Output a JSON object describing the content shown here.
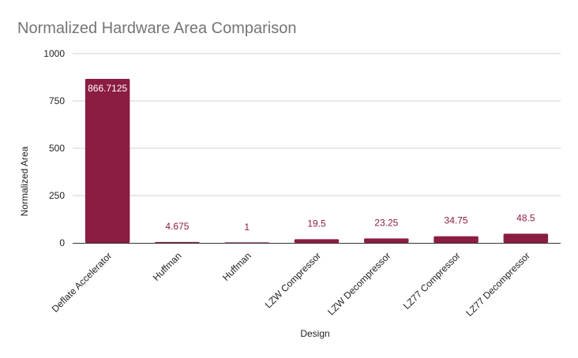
{
  "chart_data": {
    "type": "bar",
    "title": "Normalized Hardware Area Comparison",
    "xlabel": "Design",
    "ylabel": "Normalized Area",
    "categories": [
      "Deflate Accelerator",
      "Huffman",
      "Huffman",
      "LZW Compressor",
      "LZW Decompressor",
      "LZ77 Compressor",
      "LZ77 Decompressor"
    ],
    "values": [
      866.7125,
      4.675,
      1,
      19.5,
      23.25,
      34.75,
      48.5
    ],
    "data_labels": [
      "866.7125",
      "4.675",
      "1",
      "19.5",
      "23.25",
      "34.75",
      "48.5"
    ],
    "ylim": [
      0,
      1000
    ],
    "yticks": [
      0,
      250,
      500,
      750,
      1000
    ],
    "grid": true,
    "legend": "none",
    "colors": {
      "bar": "#8b1c42",
      "label_outside": "#8b1c42",
      "label_inside": "#ffffff",
      "grid": "#d0d0d0",
      "baseline": "#333333"
    }
  }
}
